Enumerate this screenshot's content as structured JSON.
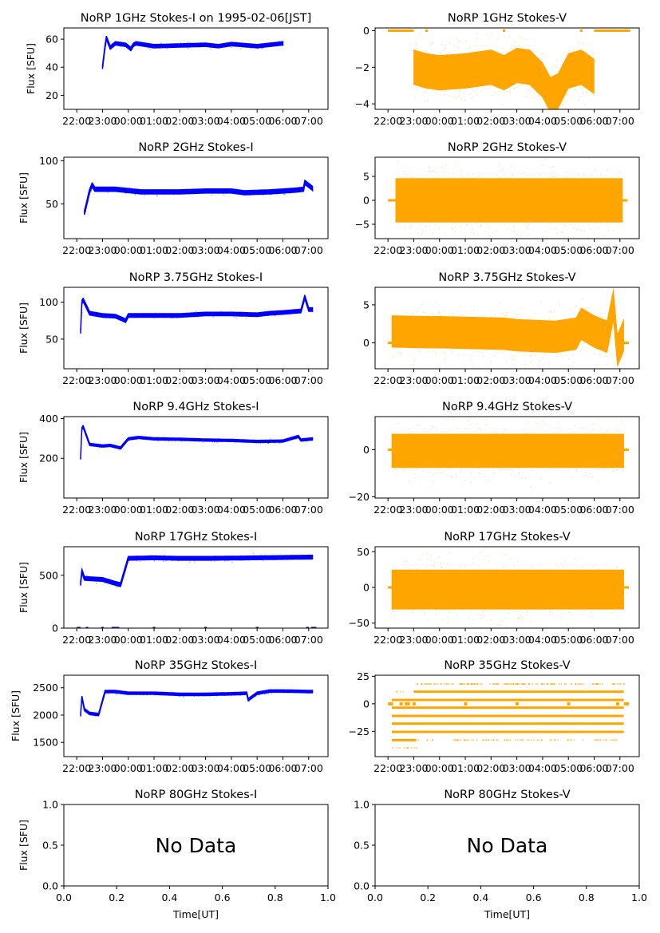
{
  "figure": {
    "type": "multi-panel time series",
    "date_label": "1995-02-06[JST]",
    "colors": {
      "stokes_i": "#0000ff",
      "stokes_v": "#ffa500",
      "axes": "#000000"
    }
  },
  "chart_data": [
    {
      "id": "i-1ghz",
      "type": "scatter",
      "title": "NoRP 1GHz Stokes-I on 1995-02-06[JST]",
      "ylabel": "Flux [SFU]",
      "xlabel": "",
      "ylim": [
        10,
        68
      ],
      "yticks": [
        20,
        40,
        60
      ],
      "ytick_labels": [
        "20",
        "40",
        "60"
      ],
      "xticks": [
        "22:00",
        "23:00",
        "00:00",
        "01:00",
        "02:00",
        "03:00",
        "04:00",
        "05:00",
        "06:00",
        "07:00"
      ],
      "color": "#0000ff",
      "kind": "I",
      "series": [
        {
          "name": "Stokes-I",
          "t": [
            23.0,
            23.1,
            23.15,
            23.3,
            23.5,
            23.9,
            24.1,
            24.2,
            24.3,
            25.0,
            26.0,
            27.0,
            27.5,
            28.0,
            29.0,
            29.5,
            30.0
          ],
          "y": [
            40,
            55,
            61,
            54,
            57,
            56,
            53,
            56,
            57,
            55,
            55.5,
            56,
            55,
            56.5,
            55,
            56,
            57
          ],
          "band": 1.5
        }
      ]
    },
    {
      "id": "v-1ghz",
      "type": "scatter",
      "title": "NoRP 1GHz Stokes-V",
      "ylabel": "",
      "xlabel": "",
      "ylim": [
        -4.3,
        0.15
      ],
      "yticks": [
        -4,
        -2,
        0
      ],
      "ytick_labels": [
        "−4",
        "−2",
        "0"
      ],
      "xticks": [
        "22:00",
        "23:00",
        "00:00",
        "01:00",
        "02:00",
        "03:00",
        "04:00",
        "05:00",
        "06:00",
        "07:00"
      ],
      "color": "#ffa500",
      "kind": "V",
      "zero_segments": [
        [
          22.0,
          23.0
        ],
        [
          23.45,
          23.55
        ],
        [
          26.45,
          26.55
        ],
        [
          29.45,
          29.55
        ],
        [
          30.0,
          31.4
        ]
      ],
      "series": [
        {
          "name": "Stokes-V",
          "t": [
            23.0,
            23.5,
            24.0,
            25.0,
            26.0,
            26.5,
            27.0,
            27.5,
            28.0,
            28.3,
            28.6,
            29.0,
            29.5,
            30.0
          ],
          "y": [
            -2.0,
            -2.2,
            -2.3,
            -2.2,
            -2.0,
            -2.3,
            -1.9,
            -2.0,
            -2.7,
            -3.5,
            -3.3,
            -2.2,
            -2.0,
            -2.5
          ],
          "band": 1.0
        }
      ]
    },
    {
      "id": "i-2ghz",
      "type": "scatter",
      "title": "NoRP 2GHz Stokes-I",
      "ylabel": "Flux [SFU]",
      "xlabel": "",
      "ylim": [
        10,
        104
      ],
      "yticks": [
        50,
        100
      ],
      "ytick_labels": [
        "50",
        "100"
      ],
      "xticks": [
        "22:00",
        "23:00",
        "00:00",
        "01:00",
        "02:00",
        "03:00",
        "04:00",
        "05:00",
        "06:00",
        "07:00"
      ],
      "color": "#0000ff",
      "kind": "I",
      "series": [
        {
          "name": "Stokes-I",
          "t": [
            22.3,
            22.5,
            22.6,
            22.7,
            23.5,
            24.5,
            26.0,
            27.0,
            28.0,
            28.5,
            29.5,
            30.5,
            30.8,
            30.85,
            31.15
          ],
          "y": [
            40,
            65,
            72,
            67,
            67,
            64,
            64,
            65,
            65,
            63,
            64,
            66,
            67,
            75,
            68
          ],
          "band": 3
        }
      ]
    },
    {
      "id": "v-2ghz",
      "type": "scatter",
      "title": "NoRP 2GHz Stokes-V",
      "ylabel": "",
      "xlabel": "",
      "ylim": [
        -8,
        9
      ],
      "yticks": [
        -5,
        0,
        5
      ],
      "ytick_labels": [
        "−5",
        "0",
        "5"
      ],
      "xticks": [
        "22:00",
        "23:00",
        "00:00",
        "01:00",
        "02:00",
        "03:00",
        "04:00",
        "05:00",
        "06:00",
        "07:00"
      ],
      "color": "#ffa500",
      "kind": "V",
      "zero_segments": [
        [
          22.0,
          22.3
        ],
        [
          31.1,
          31.3
        ]
      ],
      "series": [
        {
          "name": "Stokes-V",
          "t": [
            22.3,
            31.1
          ],
          "y": [
            0,
            0
          ],
          "band": 4.8
        }
      ]
    },
    {
      "id": "i-375ghz",
      "type": "scatter",
      "title": "NoRP 3.75GHz Stokes-I",
      "ylabel": "Flux [SFU]",
      "xlabel": "",
      "ylim": [
        10,
        120
      ],
      "yticks": [
        50,
        100
      ],
      "ytick_labels": [
        "50",
        "100"
      ],
      "xticks": [
        "22:00",
        "23:00",
        "00:00",
        "01:00",
        "02:00",
        "03:00",
        "04:00",
        "05:00",
        "06:00",
        "07:00"
      ],
      "color": "#0000ff",
      "kind": "I",
      "series": [
        {
          "name": "Stokes-I",
          "t": [
            22.15,
            22.2,
            22.25,
            22.5,
            23.0,
            23.5,
            23.9,
            24.0,
            25.0,
            26.0,
            27.0,
            28.0,
            29.0,
            29.5,
            30.0,
            30.7,
            30.85,
            31.0,
            31.15
          ],
          "y": [
            60,
            100,
            103,
            85,
            82,
            81,
            75,
            82,
            82,
            82,
            84,
            84,
            83,
            85,
            86,
            88,
            107,
            90,
            90
          ],
          "band": 3
        }
      ]
    },
    {
      "id": "v-375ghz",
      "type": "scatter",
      "title": "NoRP 3.75GHz Stokes-V",
      "ylabel": "",
      "xlabel": "",
      "ylim": [
        -3.4,
        7.3
      ],
      "yticks": [
        0,
        5
      ],
      "ytick_labels": [
        "0",
        "5"
      ],
      "xticks": [
        "22:00",
        "23:00",
        "00:00",
        "01:00",
        "02:00",
        "03:00",
        "04:00",
        "05:00",
        "06:00",
        "07:00"
      ],
      "color": "#ffa500",
      "kind": "V",
      "zero_segments": [
        [
          22.0,
          22.15
        ],
        [
          31.15,
          31.35
        ]
      ],
      "series": [
        {
          "name": "Stokes-V",
          "t": [
            22.15,
            23.5,
            24.0,
            26.5,
            27.0,
            28.5,
            29.3,
            29.5,
            30.0,
            30.5,
            30.75,
            30.9,
            31.15
          ],
          "y": [
            1.5,
            1.4,
            1.4,
            1.2,
            1.0,
            0.8,
            1.2,
            2.5,
            1.5,
            0.8,
            5.0,
            -1.0,
            1.0
          ],
          "band": 2.2
        }
      ]
    },
    {
      "id": "i-94ghz",
      "type": "scatter",
      "title": "NoRP 9.4GHz Stokes-I",
      "ylabel": "Flux [SFU]",
      "xlabel": "",
      "ylim": [
        0,
        410
      ],
      "yticks": [
        200,
        400
      ],
      "ytick_labels": [
        "200",
        "400"
      ],
      "xticks": [
        "22:00",
        "23:00",
        "00:00",
        "01:00",
        "02:00",
        "03:00",
        "04:00",
        "05:00",
        "06:00",
        "07:00"
      ],
      "color": "#0000ff",
      "kind": "I",
      "series": [
        {
          "name": "Stokes-I",
          "t": [
            22.15,
            22.2,
            22.25,
            22.5,
            23.0,
            23.3,
            23.7,
            24.0,
            24.4,
            25.0,
            26.0,
            27.0,
            28.0,
            29.0,
            30.0,
            30.6,
            30.7,
            31.15
          ],
          "y": [
            200,
            350,
            360,
            270,
            262,
            265,
            252,
            298,
            305,
            298,
            296,
            292,
            290,
            285,
            287,
            310,
            292,
            298
          ],
          "band": 7
        }
      ]
    },
    {
      "id": "v-94ghz",
      "type": "scatter",
      "title": "NoRP 9.4GHz Stokes-V",
      "ylabel": "",
      "xlabel": "",
      "ylim": [
        -20.5,
        14
      ],
      "yticks": [
        -20,
        0
      ],
      "ytick_labels": [
        "−20",
        "0"
      ],
      "xticks": [
        "22:00",
        "23:00",
        "00:00",
        "01:00",
        "02:00",
        "03:00",
        "04:00",
        "05:00",
        "06:00",
        "07:00"
      ],
      "color": "#ffa500",
      "kind": "V",
      "zero_segments": [
        [
          22.0,
          22.15
        ],
        [
          31.15,
          31.35
        ]
      ],
      "series": [
        {
          "name": "Stokes-V",
          "t": [
            22.15,
            31.15
          ],
          "y": [
            -0.5,
            -0.5
          ],
          "band": 7.5
        }
      ]
    },
    {
      "id": "i-17ghz",
      "type": "scatter",
      "title": "NoRP 17GHz Stokes-I",
      "ylabel": "Flux [SFU]",
      "xlabel": "",
      "ylim": [
        0,
        770
      ],
      "yticks": [
        0,
        500
      ],
      "ytick_labels": [
        "0",
        "500"
      ],
      "xticks": [
        "22:00",
        "23:00",
        "00:00",
        "01:00",
        "02:00",
        "03:00",
        "04:00",
        "05:00",
        "06:00",
        "07:00"
      ],
      "color": "#0000ff",
      "kind": "I",
      "series": [
        {
          "name": "Stokes-I",
          "t": [
            22.15,
            22.2,
            22.3,
            23.0,
            23.4,
            23.7,
            24.0,
            25.0,
            26.0,
            27.0,
            28.0,
            29.0,
            30.0,
            31.15
          ],
          "y": [
            420,
            540,
            470,
            460,
            430,
            410,
            660,
            665,
            660,
            660,
            662,
            665,
            668,
            672
          ],
          "band": 22
        }
      ]
    },
    {
      "id": "v-17ghz",
      "type": "scatter",
      "title": "NoRP 17GHz Stokes-V",
      "ylabel": "",
      "xlabel": "",
      "ylim": [
        -57,
        57
      ],
      "yticks": [
        -50,
        0,
        50
      ],
      "ytick_labels": [
        "−50",
        "0",
        "50"
      ],
      "xticks": [
        "22:00",
        "23:00",
        "00:00",
        "01:00",
        "02:00",
        "03:00",
        "04:00",
        "05:00",
        "06:00",
        "07:00"
      ],
      "color": "#ffa500",
      "kind": "V",
      "zero_segments": [
        [
          22.0,
          22.15
        ],
        [
          31.15,
          31.35
        ]
      ],
      "series": [
        {
          "name": "Stokes-V",
          "t": [
            22.15,
            31.15
          ],
          "y": [
            -3,
            -3
          ],
          "band": 29
        }
      ]
    },
    {
      "id": "i-35ghz",
      "type": "scatter",
      "title": "NoRP 35GHz Stokes-I",
      "ylabel": "Flux [SFU]",
      "xlabel": "",
      "ylim": [
        1240,
        2730
      ],
      "yticks": [
        1500,
        2000,
        2500
      ],
      "ytick_labels": [
        "1500",
        "2000",
        "2500"
      ],
      "xticks": [
        "22:00",
        "23:00",
        "00:00",
        "01:00",
        "02:00",
        "03:00",
        "04:00",
        "05:00",
        "06:00",
        "07:00"
      ],
      "color": "#0000ff",
      "kind": "I",
      "series": [
        {
          "name": "Stokes-I",
          "t": [
            22.15,
            22.2,
            22.3,
            22.5,
            22.85,
            23.1,
            23.5,
            24.0,
            25.0,
            26.0,
            27.0,
            28.0,
            28.6,
            28.65,
            29.0,
            29.5,
            30.0,
            31.15
          ],
          "y": [
            2000,
            2330,
            2100,
            2030,
            2010,
            2430,
            2430,
            2400,
            2400,
            2380,
            2380,
            2390,
            2400,
            2280,
            2400,
            2440,
            2440,
            2430
          ],
          "band": 28
        }
      ]
    },
    {
      "id": "v-35ghz",
      "type": "scatter",
      "title": "NoRP 35GHz Stokes-V",
      "ylabel": "",
      "xlabel": "",
      "ylim": [
        -48,
        26
      ],
      "yticks": [
        -25,
        0,
        25
      ],
      "ytick_labels": [
        "−25",
        "0",
        "25"
      ],
      "xticks": [
        "22:00",
        "23:00",
        "00:00",
        "01:00",
        "02:00",
        "03:00",
        "04:00",
        "05:00",
        "06:00",
        "07:00"
      ],
      "color": "#ffa500",
      "kind": "levels",
      "zero_segments": [
        [
          22.0,
          22.2
        ],
        [
          22.45,
          22.55
        ],
        [
          22.65,
          22.85
        ],
        [
          22.95,
          23.05
        ],
        [
          24.95,
          25.05
        ],
        [
          26.95,
          27.05
        ],
        [
          28.95,
          29.05
        ],
        [
          30.85,
          30.95
        ],
        [
          31.15,
          31.35
        ]
      ],
      "levels": [
        {
          "y": 18,
          "t": [
            23.1,
            31.15
          ],
          "strength": 0.55
        },
        {
          "y": 11,
          "t": [
            23.0,
            31.15
          ],
          "strength": 1.0
        },
        {
          "y": 11,
          "t": [
            22.25,
            22.65
          ],
          "strength": 0.35
        },
        {
          "y": 3.5,
          "t": [
            22.15,
            31.15
          ],
          "strength": 1.0
        },
        {
          "y": -3.5,
          "t": [
            22.15,
            31.15
          ],
          "strength": 1.0
        },
        {
          "y": -11,
          "t": [
            22.15,
            31.15
          ],
          "strength": 1.0
        },
        {
          "y": -18,
          "t": [
            22.15,
            31.15
          ],
          "strength": 1.0
        },
        {
          "y": -25.5,
          "t": [
            22.15,
            31.15
          ],
          "strength": 1.0
        },
        {
          "y": -33,
          "t": [
            22.15,
            31.15
          ],
          "strength": 0.3
        },
        {
          "y": -33,
          "t": [
            22.15,
            23.1
          ],
          "strength": 0.9
        },
        {
          "y": -40,
          "t": [
            22.15,
            23.1
          ],
          "strength": 0.35
        }
      ]
    },
    {
      "id": "i-80ghz",
      "type": "scatter",
      "title": "NoRP 80GHz Stokes-I",
      "ylabel": "Flux [SFU]",
      "xlabel": "Time[UT]",
      "ylim": [
        0,
        1
      ],
      "xlim": [
        0,
        1
      ],
      "yticks": [
        0,
        0.5,
        1
      ],
      "ytick_labels": [
        "0.0",
        "0.5",
        "1.0"
      ],
      "xticks_num": [
        0,
        0.2,
        0.4,
        0.6,
        0.8,
        1.0
      ],
      "xticks": [
        "0.0",
        "0.2",
        "0.4",
        "0.6",
        "0.8",
        "1.0"
      ],
      "kind": "empty",
      "annotation": "No Data"
    },
    {
      "id": "v-80ghz",
      "type": "scatter",
      "title": "NoRP 80GHz Stokes-V",
      "ylabel": "",
      "xlabel": "Time[UT]",
      "ylim": [
        0,
        1
      ],
      "xlim": [
        0,
        1
      ],
      "yticks": [
        0,
        0.5,
        1
      ],
      "ytick_labels": [
        "0.0",
        "0.5",
        "1.0"
      ],
      "xticks_num": [
        0,
        0.2,
        0.4,
        0.6,
        0.8,
        1.0
      ],
      "xticks": [
        "0.0",
        "0.2",
        "0.4",
        "0.6",
        "0.8",
        "1.0"
      ],
      "kind": "empty",
      "annotation": "No Data"
    }
  ]
}
